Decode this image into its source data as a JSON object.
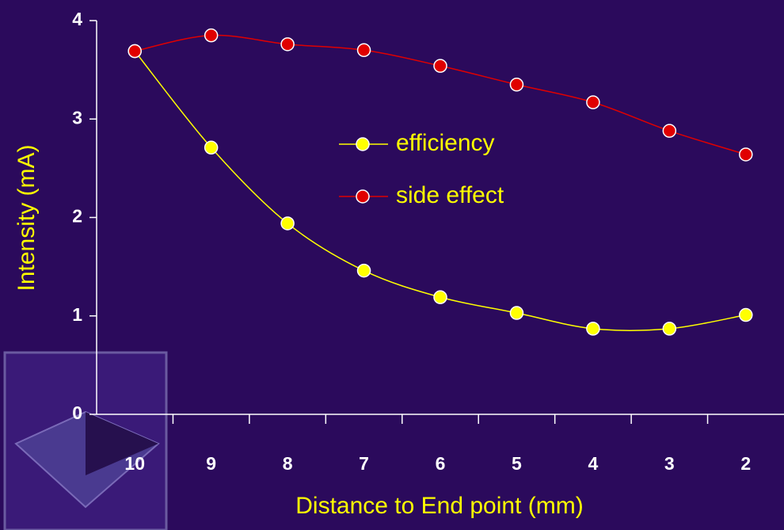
{
  "chart_data": {
    "type": "line",
    "x_label": "Distance to End point (mm)",
    "y_label": "Intensity  (mA)",
    "categories": [
      "10",
      "9",
      "8",
      "7",
      "6",
      "5",
      "4",
      "3",
      "2"
    ],
    "series": [
      {
        "name": "efficiency",
        "color": "#ffff00",
        "values": [
          3.69,
          2.71,
          1.94,
          1.46,
          1.19,
          1.03,
          0.87,
          0.87,
          1.01
        ]
      },
      {
        "name": "side effect",
        "color": "#e00000",
        "values": [
          3.69,
          3.85,
          3.76,
          3.7,
          3.54,
          3.35,
          3.17,
          2.88,
          2.64
        ]
      }
    ],
    "ylim": [
      0,
      4
    ],
    "yticks": [
      0,
      1,
      2,
      3,
      4
    ],
    "grid": false
  }
}
